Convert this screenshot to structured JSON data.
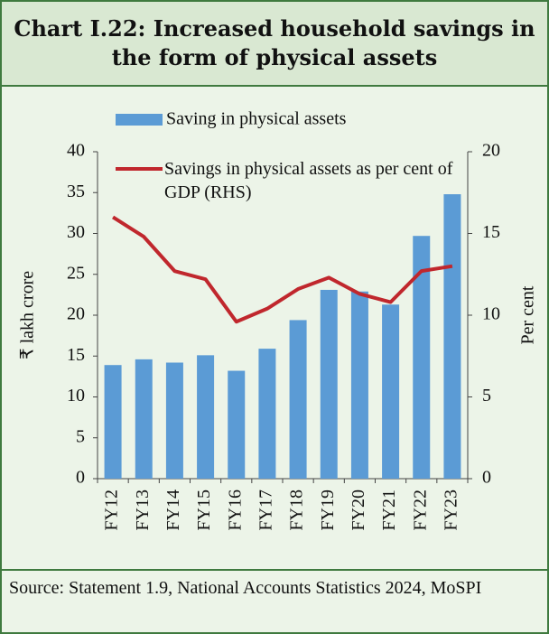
{
  "chart_data": {
    "type": "bar-line",
    "title": "Chart I.22: Increased household savings in the form of physical assets",
    "categories": [
      "FY12",
      "FY13",
      "FY14",
      "FY15",
      "FY16",
      "FY17",
      "FY18",
      "FY19",
      "FY20",
      "FY21",
      "FY22",
      "FY23"
    ],
    "series": [
      {
        "name": "Saving in physical assets",
        "type": "bar",
        "color": "#5b9bd5",
        "values": [
          13.9,
          14.6,
          14.2,
          15.1,
          13.2,
          15.9,
          19.4,
          23.1,
          22.9,
          21.3,
          29.7,
          34.8
        ]
      },
      {
        "name": "Savings in physical assets as per cent of GDP (RHS)",
        "type": "line",
        "color": "#c0272d",
        "axis": "y2",
        "values": [
          16.0,
          14.8,
          12.7,
          12.2,
          9.6,
          10.4,
          11.6,
          12.3,
          11.3,
          10.8,
          12.7,
          13.0
        ]
      }
    ],
    "ylabel": "₹ lakh crore",
    "y2label": "Per cent",
    "ylim": [
      0,
      40
    ],
    "yticks": [
      0,
      5,
      10,
      15,
      20,
      25,
      30,
      35,
      40
    ],
    "y2lim": [
      0,
      20
    ],
    "y2ticks": [
      0,
      5,
      10,
      15,
      20
    ],
    "source": "Source: Statement 1.9, National Accounts Statistics 2024, MoSPI"
  }
}
